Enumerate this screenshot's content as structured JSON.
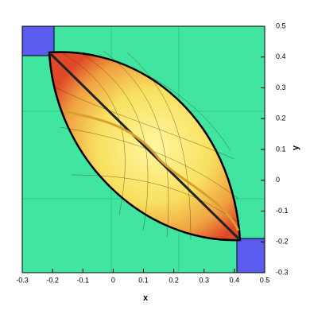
{
  "chart_data": {
    "type": "contour",
    "xlabel": "x",
    "ylabel": "y",
    "xlim": [
      -0.3,
      0.5
    ],
    "ylim": [
      -0.3,
      0.5
    ],
    "xticks": [
      -0.3,
      -0.2,
      -0.1,
      0,
      0.1,
      0.2,
      0.3,
      0.4,
      0.5
    ],
    "yticks": [
      -0.3,
      -0.2,
      -0.1,
      0,
      0.1,
      0.2,
      0.3,
      0.4,
      0.5
    ]
  }
}
